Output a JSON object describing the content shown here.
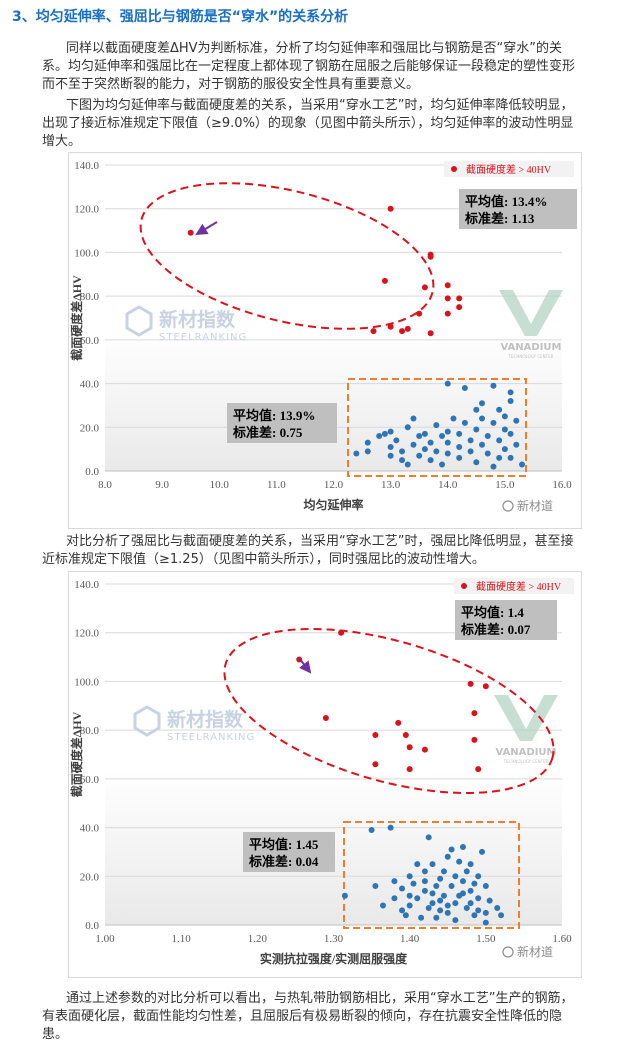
{
  "heading": "3、均匀延伸率、强屈比与钢筋是否“穿水”的关系分析",
  "para1_lines": [
    "同样以截面硬度差ΔHV为判断标准，分析了均匀延伸率和强屈比与钢筋是否“穿水”的关",
    "系。均匀延伸率和强屈比在一定程度上都体现了钢筋在屈服之后能够保证一段稳定的塑性变形",
    "而不至于突然断裂的能力，对于钢筋的服役安全性具有重要意义。"
  ],
  "para2_lines": [
    "下图为均匀延伸率与截面硬度差的关系，当采用“穿水工艺”时，均匀延伸率降低较明显，",
    "出现了接近标准规定下限值（≥9.0%）的现象（见图中箭头所示），均匀延伸率的波动性明显",
    "增大。"
  ],
  "para3_lines": [
    "对比分析了强屈比与截面硬度差的关系，当采用“穿水工艺”时，强屈比降低明显，甚至接",
    "近标准规定下限值（≥1.25）（见图中箭头所示），同时强屈比的波动性增大。"
  ],
  "para4_lines": [
    "通过上述参数的对比分析可以看出，与热轧带肋钢筋相比，采用“穿水工艺”生产的钢筋，",
    "有表面硬化层，截面性能均匀性差，且屈服后有极易断裂的倾向，存在抗震安全性降低的隐",
    "患。"
  ],
  "watermark": {
    "logo_cn": "新材指数",
    "logo_en": "STEELRANKING",
    "brand": "VANADIUM",
    "brand_sub": "TECHNOLOGY CENTER",
    "corner": "新材道"
  },
  "colors": {
    "red": "#d9121b",
    "blue": "#2e75b6",
    "orange": "#ed7d31",
    "gray_box": "#bfbfbf",
    "heading": "#1a6fc0"
  },
  "chart_data": [
    {
      "type": "scatter",
      "xlabel": "均匀延伸率",
      "ylabel": "截面硬度差ΔHV",
      "xlim": [
        8.0,
        16.0
      ],
      "ylim": [
        0.0,
        140.0
      ],
      "xticks": [
        "8.0",
        "9.0",
        "10.0",
        "11.0",
        "12.0",
        "13.0",
        "14.0",
        "15.0",
        "16.0"
      ],
      "yticks": [
        "0.0",
        "20.0",
        "40.0",
        "60.0",
        "80.0",
        "100.0",
        "120.0",
        "140.0"
      ],
      "legend": "截面硬度差 > 40HV",
      "stat_red": {
        "mean_label": "平均值: 13.4%",
        "std_label": "标准差: 1.13"
      },
      "stat_blue": {
        "mean_label": "平均值: 13.9%",
        "std_label": "标准差: 0.75"
      },
      "series": [
        {
          "name": "截面硬度差 > 40HV",
          "color": "#d9121b",
          "points": [
            [
              9.5,
              109
            ],
            [
              13.0,
              120
            ],
            [
              12.9,
              87
            ],
            [
              13.7,
              99
            ],
            [
              13.7,
              98
            ],
            [
              13.6,
              84
            ],
            [
              14.0,
              85
            ],
            [
              14.0,
              79
            ],
            [
              14.2,
              75
            ],
            [
              14.2,
              79
            ],
            [
              14.0,
              72
            ],
            [
              13.5,
              72
            ],
            [
              13.3,
              65
            ],
            [
              13.0,
              66
            ],
            [
              12.7,
              64
            ],
            [
              13.2,
              64
            ],
            [
              13.7,
              63
            ]
          ]
        },
        {
          "name": "",
          "color": "#2e75b6",
          "points": [
            [
              12.4,
              8
            ],
            [
              12.6,
              13
            ],
            [
              12.6,
              9
            ],
            [
              12.8,
              16
            ],
            [
              12.9,
              17
            ],
            [
              13.0,
              18
            ],
            [
              13.0,
              11
            ],
            [
              13.0,
              7
            ],
            [
              13.1,
              14
            ],
            [
              13.2,
              9
            ],
            [
              13.2,
              5
            ],
            [
              13.3,
              20
            ],
            [
              13.3,
              3
            ],
            [
              13.4,
              24
            ],
            [
              13.4,
              12
            ],
            [
              13.5,
              16
            ],
            [
              13.5,
              7
            ],
            [
              13.6,
              17
            ],
            [
              13.6,
              10
            ],
            [
              13.7,
              13
            ],
            [
              13.7,
              5
            ],
            [
              13.8,
              21
            ],
            [
              13.8,
              9
            ],
            [
              13.9,
              16
            ],
            [
              13.9,
              3
            ],
            [
              14.0,
              40
            ],
            [
              14.0,
              18
            ],
            [
              14.0,
              13
            ],
            [
              14.0,
              8
            ],
            [
              14.1,
              24
            ],
            [
              14.2,
              17
            ],
            [
              14.2,
              11
            ],
            [
              14.2,
              6
            ],
            [
              14.3,
              38
            ],
            [
              14.3,
              22
            ],
            [
              14.4,
              14
            ],
            [
              14.4,
              9
            ],
            [
              14.5,
              28
            ],
            [
              14.5,
              19
            ],
            [
              14.5,
              4
            ],
            [
              14.6,
              31
            ],
            [
              14.6,
              24
            ],
            [
              14.6,
              12
            ],
            [
              14.7,
              16
            ],
            [
              14.7,
              8
            ],
            [
              14.8,
              39
            ],
            [
              14.8,
              22
            ],
            [
              14.8,
              2
            ],
            [
              14.9,
              28
            ],
            [
              14.9,
              14
            ],
            [
              14.9,
              6
            ],
            [
              15.0,
              25
            ],
            [
              15.0,
              19
            ],
            [
              15.0,
              10
            ],
            [
              15.1,
              36
            ],
            [
              15.1,
              32
            ],
            [
              15.1,
              17
            ],
            [
              15.1,
              6
            ],
            [
              15.2,
              23
            ],
            [
              15.2,
              12
            ],
            [
              15.3,
              3
            ]
          ]
        }
      ]
    },
    {
      "type": "scatter",
      "xlabel": "实测抗拉强度/实测屈服强度",
      "ylabel": "截面硬度差ΔHV",
      "xlim": [
        1.0,
        1.6
      ],
      "ylim": [
        0.0,
        140.0
      ],
      "xticks": [
        "1.00",
        "1.10",
        "1.20",
        "1.30",
        "1.40",
        "1.50",
        "1.60"
      ],
      "yticks": [
        "0.0",
        "20.0",
        "40.0",
        "60.0",
        "80.0",
        "100.0",
        "120.0",
        "140.0"
      ],
      "legend": "截面硬度差 > 40HV",
      "stat_red": {
        "mean_label": "平均值: 1.4",
        "std_label": "标准差: 0.07"
      },
      "stat_blue": {
        "mean_label": "平均值: 1.45",
        "std_label": "标准差: 0.04"
      },
      "series": [
        {
          "name": "截面硬度差 > 40HV",
          "color": "#d9121b",
          "points": [
            [
              1.255,
              109
            ],
            [
              1.31,
              120
            ],
            [
              1.29,
              85
            ],
            [
              1.355,
              78
            ],
            [
              1.385,
              83
            ],
            [
              1.395,
              78
            ],
            [
              1.4,
              73
            ],
            [
              1.42,
              72
            ],
            [
              1.355,
              66
            ],
            [
              1.4,
              64
            ],
            [
              1.48,
              99
            ],
            [
              1.5,
              98
            ],
            [
              1.485,
              87
            ],
            [
              1.485,
              76
            ],
            [
              1.49,
              64
            ]
          ]
        },
        {
          "name": "",
          "color": "#2e75b6",
          "points": [
            [
              1.315,
              12
            ],
            [
              1.35,
              39
            ],
            [
              1.355,
              16
            ],
            [
              1.375,
              40
            ],
            [
              1.38,
              11
            ],
            [
              1.39,
              15
            ],
            [
              1.395,
              4
            ],
            [
              1.4,
              20
            ],
            [
              1.4,
              8
            ],
            [
              1.405,
              17
            ],
            [
              1.41,
              11
            ],
            [
              1.415,
              3
            ],
            [
              1.42,
              22
            ],
            [
              1.42,
              14
            ],
            [
              1.425,
              36
            ],
            [
              1.43,
              25
            ],
            [
              1.43,
              9
            ],
            [
              1.435,
              16
            ],
            [
              1.44,
              19
            ],
            [
              1.44,
              6
            ],
            [
              1.445,
              12
            ],
            [
              1.45,
              28
            ],
            [
              1.45,
              8
            ],
            [
              1.455,
              16
            ],
            [
              1.46,
              2
            ],
            [
              1.46,
              20
            ],
            [
              1.465,
              12
            ],
            [
              1.47,
              32
            ],
            [
              1.47,
              18
            ],
            [
              1.475,
              7
            ],
            [
              1.48,
              25
            ],
            [
              1.48,
              14
            ],
            [
              1.485,
              4
            ],
            [
              1.49,
              20
            ],
            [
              1.49,
              11
            ],
            [
              1.495,
              30
            ],
            [
              1.5,
              16
            ],
            [
              1.5,
              5
            ],
            [
              1.505,
              10
            ],
            [
              1.515,
              7
            ],
            [
              1.52,
              4
            ],
            [
              1.425,
              7
            ],
            [
              1.435,
              3
            ],
            [
              1.445,
              22
            ],
            [
              1.455,
              31
            ],
            [
              1.465,
              26
            ],
            [
              1.475,
              22
            ],
            [
              1.485,
              17
            ],
            [
              1.41,
              25
            ],
            [
              1.42,
              18
            ],
            [
              1.43,
              13
            ],
            [
              1.44,
              10
            ],
            [
              1.45,
              5
            ],
            [
              1.46,
              9
            ],
            [
              1.47,
              13
            ],
            [
              1.48,
              9
            ],
            [
              1.49,
              6
            ],
            [
              1.5,
              1
            ],
            [
              1.4,
              12
            ],
            [
              1.39,
              6
            ],
            [
              1.38,
              18
            ],
            [
              1.365,
              8
            ]
          ]
        }
      ]
    }
  ]
}
